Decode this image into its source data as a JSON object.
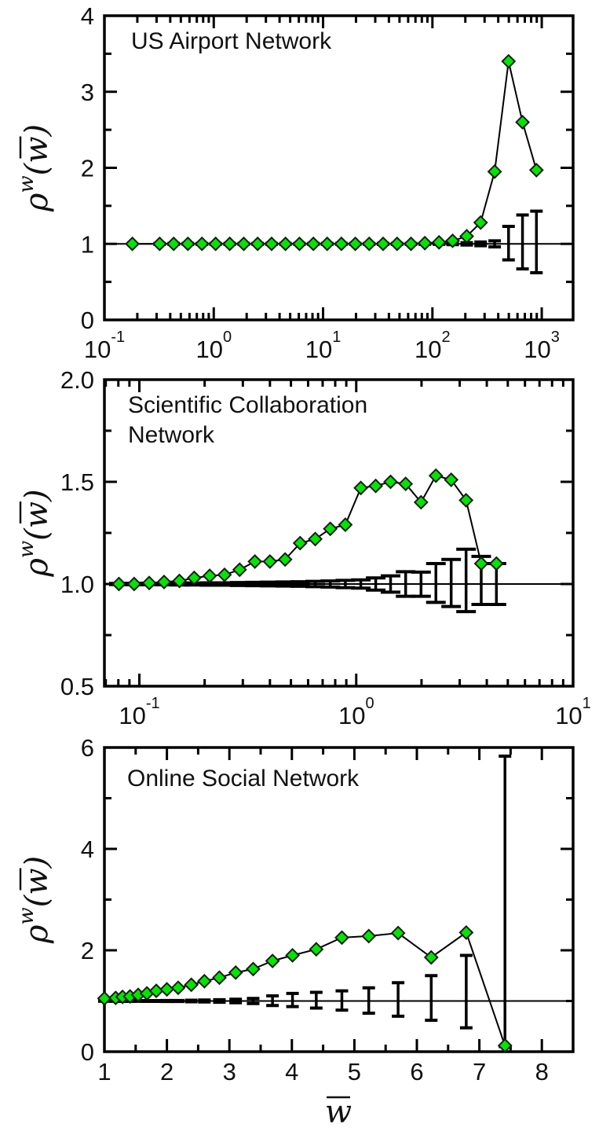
{
  "colors": {
    "marker_fill": "#00e600",
    "marker_stroke": "#1a1a1a",
    "line": "#000000"
  },
  "ylabel": {
    "base": "ρ",
    "sup": "w",
    "arg": "(w)"
  },
  "xlabel": "w",
  "chart_data": [
    {
      "type": "line",
      "title": "US Airport Network",
      "title_lines": [
        "US Airport Network"
      ],
      "xscale": "log",
      "xlim": [
        0.1,
        1935
      ],
      "ylim": [
        0,
        4
      ],
      "xticks": [
        0.1,
        1,
        10,
        100,
        1000
      ],
      "xtick_labels": [
        {
          "base": "10",
          "exp": "-1"
        },
        {
          "base": "10",
          "exp": "0"
        },
        {
          "base": "10",
          "exp": "1"
        },
        {
          "base": "10",
          "exp": "2"
        },
        {
          "base": "10",
          "exp": "3"
        }
      ],
      "yticks": [
        0,
        1,
        2,
        3,
        4
      ],
      "ytick_labels": [
        "0",
        "1",
        "2",
        "3",
        "4"
      ],
      "yminor_step": 0.5,
      "reference_line": 1,
      "grid": false,
      "series": [
        {
          "name": "rho_w",
          "x": [
            0.18,
            0.32,
            0.43,
            0.58,
            0.78,
            1.04,
            1.4,
            1.88,
            2.52,
            3.38,
            4.53,
            6.08,
            8.15,
            10.9,
            14.7,
            19.7,
            26.4,
            35.4,
            47.5,
            63.7,
            85.3,
            115,
            153,
            206,
            276,
            371,
            497,
            667,
            894
          ],
          "y": [
            1,
            1,
            1,
            1,
            1,
            1,
            1,
            1,
            1,
            1,
            1,
            1,
            1,
            1,
            1,
            1,
            1,
            1,
            1,
            1,
            1.01,
            1.02,
            1.04,
            1.1,
            1.28,
            1.95,
            3.4,
            2.6,
            1.97
          ]
        }
      ],
      "errorbars": {
        "lo": [
          null,
          0.994,
          0.994,
          0.994,
          0.994,
          0.994,
          0.994,
          0.994,
          0.994,
          0.994,
          0.994,
          0.994,
          0.994,
          0.994,
          0.994,
          0.994,
          0.994,
          0.994,
          0.994,
          0.994,
          0.994,
          0.994,
          0.99,
          0.985,
          0.975,
          0.96,
          0.79,
          0.67,
          0.62
        ],
        "hi": [
          null,
          1.006,
          1.006,
          1.006,
          1.006,
          1.006,
          1.006,
          1.006,
          1.006,
          1.006,
          1.006,
          1.006,
          1.006,
          1.006,
          1.006,
          1.006,
          1.006,
          1.006,
          1.006,
          1.006,
          1.006,
          1.006,
          1.01,
          1.015,
          1.025,
          1.04,
          1.23,
          1.38,
          1.43
        ]
      }
    },
    {
      "type": "line",
      "title": "Scientific Collaboration Network",
      "title_lines": [
        "Scientific Collaboration",
        "Network"
      ],
      "xscale": "log",
      "xlim": [
        0.069,
        10
      ],
      "ylim": [
        0.5,
        2.0
      ],
      "xticks": [
        0.1,
        1,
        10
      ],
      "xtick_labels": [
        {
          "base": "10",
          "exp": "-1"
        },
        {
          "base": "10",
          "exp": "0"
        },
        {
          "base": "10",
          "exp": "1"
        }
      ],
      "yticks": [
        0.5,
        1.0,
        1.5,
        2.0
      ],
      "ytick_labels": [
        "0.5",
        "1.0",
        "1.5",
        "2.0"
      ],
      "yminor_step": 0.25,
      "reference_line": 1,
      "grid": false,
      "series": [
        {
          "name": "rho_w",
          "x": [
            0.0805,
            0.0946,
            0.111,
            0.13,
            0.153,
            0.179,
            0.211,
            0.247,
            0.29,
            0.341,
            0.4,
            0.47,
            0.551,
            0.647,
            0.759,
            0.891,
            1.05,
            1.23,
            1.44,
            1.69,
            1.99,
            2.33,
            2.74,
            3.21,
            3.77,
            4.43
          ],
          "y": [
            1.0,
            1.0,
            1.005,
            1.01,
            1.015,
            1.03,
            1.04,
            1.045,
            1.07,
            1.11,
            1.11,
            1.12,
            1.2,
            1.22,
            1.27,
            1.29,
            1.47,
            1.48,
            1.5,
            1.49,
            1.4,
            1.53,
            1.51,
            1.41,
            1.1,
            1.1
          ]
        }
      ],
      "errorbars": {
        "lo": [
          0.997,
          0.997,
          0.996,
          0.996,
          0.995,
          0.995,
          0.994,
          0.994,
          0.993,
          0.992,
          0.991,
          0.99,
          0.989,
          0.987,
          0.985,
          0.982,
          0.98,
          0.97,
          0.96,
          0.94,
          0.94,
          0.91,
          0.89,
          0.865,
          0.9,
          0.9
        ],
        "hi": [
          1.003,
          1.003,
          1.004,
          1.004,
          1.005,
          1.005,
          1.006,
          1.006,
          1.007,
          1.008,
          1.009,
          1.01,
          1.011,
          1.013,
          1.015,
          1.018,
          1.02,
          1.03,
          1.04,
          1.06,
          1.058,
          1.1,
          1.12,
          1.17,
          1.135,
          1.1
        ]
      }
    },
    {
      "type": "line",
      "title": "Online Social Network",
      "title_lines": [
        "Online Social Network"
      ],
      "xscale": "linear",
      "xlim": [
        1,
        8.5
      ],
      "ylim": [
        0,
        6
      ],
      "xticks": [
        1,
        2,
        3,
        4,
        5,
        6,
        7,
        8
      ],
      "xtick_labels": [
        {
          "base": "1"
        },
        {
          "base": "2"
        },
        {
          "base": "3"
        },
        {
          "base": "4"
        },
        {
          "base": "5"
        },
        {
          "base": "6"
        },
        {
          "base": "7"
        },
        {
          "base": "8"
        }
      ],
      "xminor_step": 0.5,
      "yticks": [
        0,
        2,
        4,
        6
      ],
      "ytick_labels": [
        "0",
        "2",
        "4",
        "6"
      ],
      "yminor_step": 1,
      "reference_line": 1,
      "grid": false,
      "series": [
        {
          "name": "rho_w",
          "x": [
            1.0,
            1.18,
            1.29,
            1.41,
            1.54,
            1.68,
            1.83,
            2.0,
            2.18,
            2.39,
            2.6,
            2.84,
            3.1,
            3.38,
            3.69,
            4.01,
            4.39,
            4.8,
            5.23,
            5.7,
            6.23,
            6.79,
            7.41
          ],
          "y": [
            1.05,
            1.06,
            1.08,
            1.09,
            1.12,
            1.15,
            1.2,
            1.23,
            1.26,
            1.32,
            1.39,
            1.46,
            1.56,
            1.63,
            1.79,
            1.9,
            2.02,
            2.25,
            2.28,
            2.34,
            1.86,
            2.35,
            0.12
          ]
        }
      ],
      "errorbars": {
        "lo": [
          0.995,
          0.995,
          0.995,
          0.994,
          0.994,
          0.993,
          0.992,
          0.99,
          0.99,
          0.985,
          0.98,
          0.975,
          0.965,
          0.95,
          0.91,
          0.89,
          0.86,
          0.82,
          0.76,
          0.7,
          0.62,
          0.47,
          0.1
        ],
        "hi": [
          1.005,
          1.005,
          1.005,
          1.006,
          1.006,
          1.007,
          1.008,
          1.01,
          1.01,
          1.015,
          1.02,
          1.025,
          1.035,
          1.05,
          1.1,
          1.15,
          1.17,
          1.2,
          1.26,
          1.36,
          1.5,
          1.9,
          5.83
        ]
      }
    }
  ]
}
